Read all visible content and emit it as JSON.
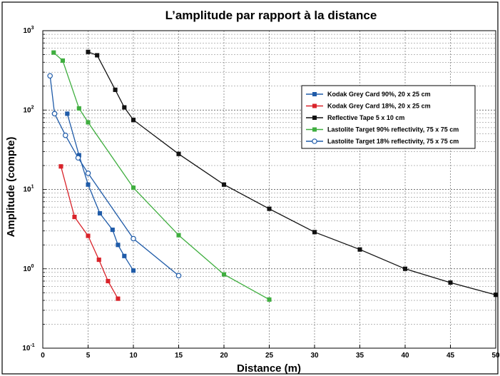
{
  "chart_data": {
    "type": "line",
    "title": "L’amplitude par rapport à la  distance",
    "xlabel": "Distance (m)",
    "ylabel": "Amplitude (compte)",
    "x_scale": "linear",
    "y_scale": "log",
    "xlim": [
      0,
      50
    ],
    "ylim": [
      0.1,
      1000
    ],
    "x_ticks": [
      0,
      5,
      10,
      15,
      20,
      25,
      30,
      35,
      40,
      45,
      50
    ],
    "y_ticks": [
      {
        "value": 0.1,
        "base": "10",
        "exp": "-1"
      },
      {
        "value": 1,
        "base": "10",
        "exp": "0"
      },
      {
        "value": 10,
        "base": "10",
        "exp": "1"
      },
      {
        "value": 100,
        "base": "10",
        "exp": "2"
      },
      {
        "value": 1000,
        "base": "10",
        "exp": "3"
      }
    ],
    "grid": true,
    "legend_position": "top-right",
    "series": [
      {
        "name": "Kodak Grey Card 90%, 20 x 25 cm",
        "color": "#1f5ba8",
        "marker": "square",
        "x": [
          2.7,
          4,
          5,
          6.3,
          7.7,
          8.3,
          9,
          10
        ],
        "y": [
          90,
          27,
          11.5,
          5,
          3.1,
          2,
          1.45,
          0.95
        ]
      },
      {
        "name": "Kodak Grey Card 18%, 20 x 25 cm",
        "color": "#d9232a",
        "marker": "square",
        "x": [
          2,
          3.5,
          5,
          6.2,
          7.2,
          8.3
        ],
        "y": [
          19.5,
          4.5,
          2.6,
          1.3,
          0.7,
          0.42
        ]
      },
      {
        "name": "Reflective Tape 5 x 10 cm",
        "color": "#111111",
        "marker": "square",
        "x": [
          5,
          6,
          8,
          9,
          10,
          15,
          20,
          25,
          30,
          35,
          40,
          45,
          50
        ],
        "y": [
          540,
          490,
          180,
          108,
          75,
          28,
          11.5,
          5.7,
          2.9,
          1.75,
          1.0,
          0.67,
          0.47
        ]
      },
      {
        "name": "Lastolite Target 90% reflectivity, 75 x 75 cm",
        "color": "#3fae3f",
        "marker": "square",
        "x": [
          1.2,
          2.2,
          4,
          5,
          10,
          15,
          20,
          25
        ],
        "y": [
          530,
          420,
          105,
          70,
          10.5,
          2.65,
          0.85,
          0.41
        ]
      },
      {
        "name": "Lastolite Target 18% reflectivity, 75 x 75 cm",
        "color": "#1f5ba8",
        "marker": "circle",
        "x": [
          0.8,
          1.3,
          2.5,
          3.9,
          5,
          10,
          15
        ],
        "y": [
          270,
          90,
          48,
          25,
          16,
          2.4,
          0.82
        ]
      }
    ]
  }
}
